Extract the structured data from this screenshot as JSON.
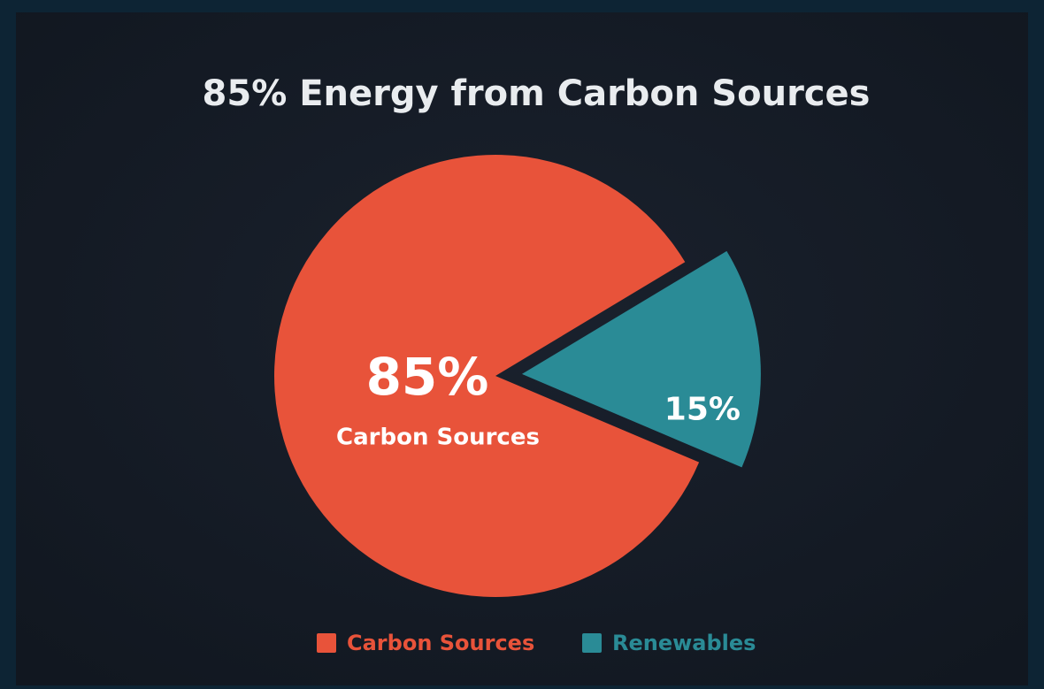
{
  "chart_data": {
    "type": "pie",
    "title": "85% Energy from Carbon Sources",
    "categories": [
      "Carbon Sources",
      "Renewables"
    ],
    "values": [
      85,
      15
    ],
    "value_labels": [
      "85%",
      "15%"
    ],
    "colors": [
      "#e8533a",
      "#2a8b96"
    ],
    "legend": "bottom"
  }
}
